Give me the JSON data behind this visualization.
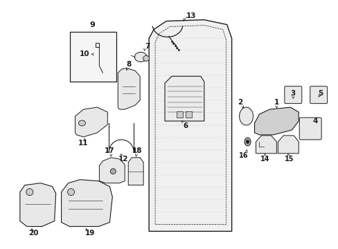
{
  "background_color": "#ffffff",
  "fig_width": 4.89,
  "fig_height": 3.6,
  "dpi": 100,
  "lc": "#1a1a1a",
  "fc_part": "#e8e8e8",
  "fc_box": "#f0f0f0"
}
